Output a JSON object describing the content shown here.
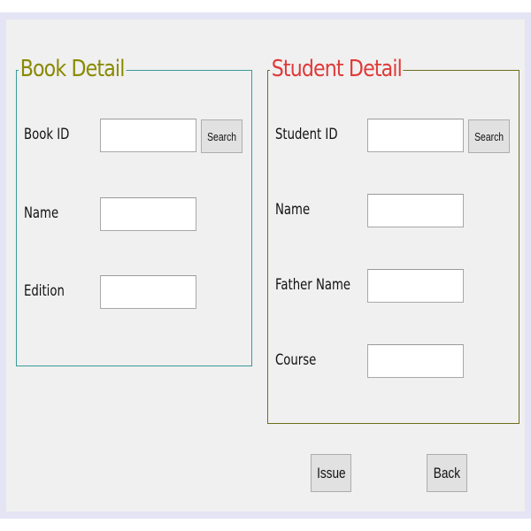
{
  "book_detail": {
    "title": "Book Detail",
    "book_id_label": "Book ID",
    "book_id_value": "",
    "search_label": "Search",
    "name_label": "Name",
    "name_value": "",
    "edition_label": "Edition",
    "edition_value": ""
  },
  "student_detail": {
    "title": "Student Detail",
    "student_id_label": "Student ID",
    "student_id_value": "",
    "search_label": "Search",
    "name_label": "Name",
    "name_value": "",
    "father_name_label": "Father Name",
    "father_name_value": "",
    "course_label": "Course",
    "course_value": ""
  },
  "actions": {
    "issue_label": "Issue",
    "back_label": "Back"
  },
  "colors": {
    "book_legend": "#8a8a00",
    "book_border": "#3a9a9a",
    "student_legend": "#e03a3a",
    "student_border": "#6e6e1e",
    "window_background": "#f0f0f0"
  }
}
